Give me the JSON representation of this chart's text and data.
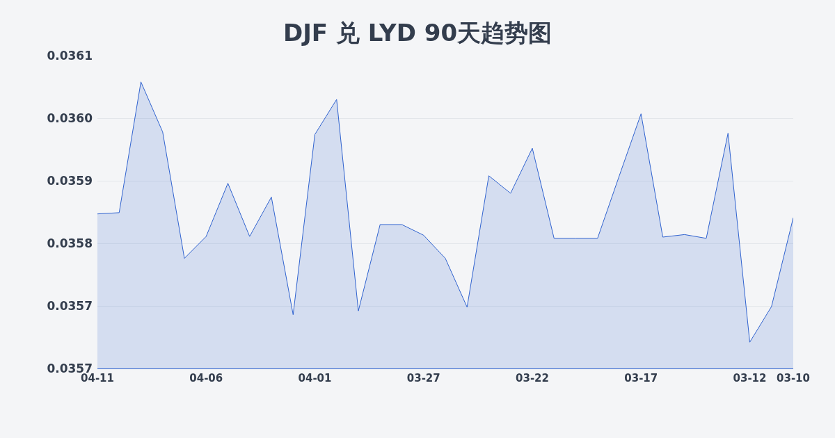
{
  "chart_data": {
    "type": "area",
    "title": "DJF 兑 LYD 90天趋势图",
    "x": [
      "--04-11",
      "--04-10",
      "--04-09",
      "--04-08",
      "--04-07",
      "--04-06",
      "--04-05",
      "--04-04",
      "--04-03",
      "--04-02",
      "--04-01",
      "--03-31",
      "--03-30",
      "--03-29",
      "--03-28",
      "--03-27",
      "--03-26",
      "--03-25",
      "--03-24",
      "--03-23",
      "--03-22",
      "--03-21",
      "--03-20",
      "--03-19",
      "--03-18",
      "--03-17",
      "--03-16",
      "--03-15",
      "--03-14",
      "--03-13",
      "--03-12",
      "--03-11",
      "--03-10"
    ],
    "series": [
      {
        "color": "#2f62cf",
        "values": [
          0.035897,
          0.035899,
          0.036108,
          0.036028,
          0.035826,
          0.035861,
          0.035946,
          0.035861,
          0.035924,
          0.035736,
          0.036024,
          0.03608,
          0.035742,
          0.03588,
          0.03588,
          0.035863,
          0.035826,
          0.035748,
          0.035958,
          0.03593,
          0.036002,
          0.035858,
          0.035858,
          0.035858,
          0.035958,
          0.036057,
          0.03586,
          0.035864,
          0.035858,
          0.036026,
          0.035692,
          0.035749,
          0.035891
        ]
      }
    ],
    "xlim": [
      "--04-11",
      "--03-10"
    ],
    "xticks": [
      {
        "value": "--04-11",
        "label": "04-11"
      },
      {
        "value": "--04-06",
        "label": "04-06"
      },
      {
        "value": "--04-01",
        "label": "04-01"
      },
      {
        "value": "--03-27",
        "label": "03-27"
      },
      {
        "value": "--03-22",
        "label": "03-22"
      },
      {
        "value": "--03-17",
        "label": "03-17"
      },
      {
        "value": "--03-12",
        "label": "03-12"
      },
      {
        "value": "--03-10",
        "label": "03-10"
      }
    ],
    "ylim": [
      0.03565,
      0.03615
    ],
    "yticks": [
      {
        "value": 0.03565,
        "label": "0.0357"
      },
      {
        "value": 0.03575,
        "label": "0.0357"
      },
      {
        "value": 0.03585,
        "label": "0.0358"
      },
      {
        "value": 0.03595,
        "label": "0.0359"
      },
      {
        "value": 0.03605,
        "label": "0.0360"
      },
      {
        "value": 0.03615,
        "label": "0.0361"
      }
    ],
    "grid": "y",
    "marker": "none",
    "line_style": "solid"
  }
}
